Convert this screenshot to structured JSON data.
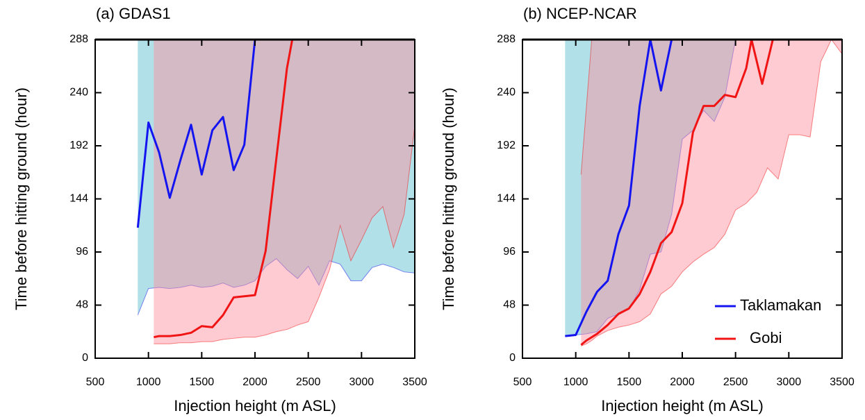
{
  "chart_data": [
    {
      "type": "line",
      "title": "(a) GDAS1",
      "xlabel": "Injection height (m ASL)",
      "ylabel": "Time before hitting ground (hour)",
      "xlim": [
        500,
        3500
      ],
      "ylim": [
        0,
        288
      ],
      "xticks": [
        500,
        1000,
        1500,
        2000,
        2500,
        3000,
        3500
      ],
      "yticks": [
        0,
        48,
        96,
        144,
        192,
        240,
        288
      ],
      "series": [
        {
          "color": "#1414f0",
          "fill": "#a8dde6",
          "x": [
            900,
            1000,
            1100,
            1200,
            1300,
            1400,
            1500,
            1600,
            1700,
            1800,
            1900,
            2000
          ],
          "values": [
            118,
            213,
            186,
            145,
            179,
            211,
            166,
            206,
            218,
            170,
            193,
            288
          ],
          "range": {
            "x": [
              900,
              1000,
              1100,
              1200,
              1300,
              1400,
              1500,
              1600,
              1700,
              1800,
              1900,
              2000,
              2100,
              2200,
              2300,
              2400,
              2500,
              2600,
              2700,
              2800,
              2900,
              3000,
              3100,
              3200,
              3300,
              3400,
              3500
            ],
            "lower": [
              39,
              63,
              64,
              63,
              64,
              66,
              64,
              65,
              68,
              64,
              66,
              70,
              83,
              90,
              80,
              72,
              83,
              66,
              88,
              85,
              70,
              70,
              82,
              85,
              82,
              78,
              77
            ],
            "upper": [
              288,
              288,
              288,
              288,
              288,
              288,
              288,
              288,
              288,
              288,
              288,
              288,
              288,
              288,
              288,
              288,
              288,
              288,
              288,
              288,
              288,
              288,
              288,
              288,
              288,
              288,
              288
            ]
          }
        },
        {
          "color": "#f01414",
          "fill": "#ff8c9c",
          "x": [
            1050,
            1100,
            1200,
            1300,
            1400,
            1500,
            1600,
            1700,
            1800,
            1900,
            2000,
            2100,
            2200,
            2300,
            2350
          ],
          "values": [
            19,
            20,
            20,
            21,
            23,
            29,
            28,
            39,
            55,
            56,
            57,
            97,
            180,
            262,
            288
          ],
          "range": {
            "x": [
              1050,
              1100,
              1200,
              1300,
              1400,
              1500,
              1600,
              1700,
              1800,
              1900,
              2000,
              2100,
              2200,
              2300,
              2400,
              2500,
              2600,
              2700,
              2800,
              2900,
              3000,
              3100,
              3200,
              3300,
              3400,
              3500
            ],
            "lower": [
              13,
              13,
              13,
              14,
              14,
              15,
              15,
              17,
              18,
              19,
              19,
              21,
              24,
              26,
              30,
              33,
              55,
              80,
              120,
              88,
              107,
              127,
              137,
              100,
              130,
              210
            ],
            "upper": [
              288,
              288,
              288,
              288,
              288,
              288,
              288,
              288,
              288,
              288,
              288,
              288,
              288,
              288,
              288,
              288,
              288,
              288,
              288,
              288,
              288,
              288,
              288,
              288,
              288,
              288
            ]
          }
        }
      ]
    },
    {
      "type": "line",
      "title": "(b) NCEP-NCAR",
      "xlabel": "Injection height (m ASL)",
      "ylabel": "Time before hitting ground (hour)",
      "xlim": [
        500,
        3500
      ],
      "ylim": [
        0,
        288
      ],
      "xticks": [
        500,
        1000,
        1500,
        2000,
        2500,
        3000,
        3500
      ],
      "yticks": [
        0,
        48,
        96,
        144,
        192,
        240,
        288
      ],
      "legend": "lower right",
      "series": [
        {
          "name": "Taklamakan",
          "color": "#1414f0",
          "fill": "#a8dde6",
          "x": [
            900,
            1000,
            1100,
            1200,
            1300,
            1400,
            1500,
            1600,
            1700,
            1800,
            1900
          ],
          "values": [
            20,
            21,
            42,
            60,
            70,
            112,
            138,
            228,
            288,
            242,
            288
          ],
          "range": {
            "x": [
              900,
              1000,
              1100,
              1200,
              1300,
              1400,
              1500,
              1600,
              1700,
              1800,
              1900,
              2000,
              2100,
              2200,
              2300,
              2400,
              2500
            ],
            "lower": [
              20,
              21,
              22,
              24,
              36,
              40,
              44,
              62,
              94,
              96,
              130,
              198,
              206,
              224,
              214,
              236,
              288
            ],
            "upper": [
              288,
              288,
              288,
              288,
              288,
              288,
              288,
              288,
              288,
              288,
              288,
              288,
              288,
              288,
              288,
              288,
              288
            ]
          }
        },
        {
          "name": "Gobi",
          "color": "#f01414",
          "fill": "#ff8c9c",
          "x": [
            1050,
            1100,
            1200,
            1300,
            1400,
            1500,
            1600,
            1700,
            1800,
            1900,
            2000,
            2100,
            2200,
            2300,
            2400,
            2500,
            2600,
            2650,
            2750,
            2850
          ],
          "values": [
            12,
            16,
            22,
            30,
            40,
            45,
            58,
            78,
            104,
            114,
            140,
            204,
            228,
            228,
            238,
            236,
            262,
            288,
            248,
            288
          ],
          "range": {
            "x": [
              1050,
              1100,
              1150,
              1200,
              1300,
              1400,
              1500,
              1600,
              1700,
              1800,
              1900,
              2000,
              2100,
              2200,
              2300,
              2400,
              2500,
              2600,
              2700,
              2800,
              2900,
              3000,
              3100,
              3200,
              3300,
              3400,
              3500
            ],
            "lower": [
              11,
              13,
              16,
              20,
              25,
              28,
              30,
              33,
              40,
              58,
              65,
              78,
              87,
              94,
              100,
              112,
              134,
              140,
              150,
              172,
              162,
              202,
              202,
              200,
              268,
              288,
              275
            ],
            "upper": [
              166,
              227,
              288,
              288,
              288,
              288,
              288,
              288,
              288,
              288,
              288,
              288,
              288,
              288,
              288,
              288,
              288,
              288,
              288,
              288,
              288,
              288,
              288,
              288,
              288,
              288,
              288
            ]
          }
        }
      ]
    }
  ]
}
